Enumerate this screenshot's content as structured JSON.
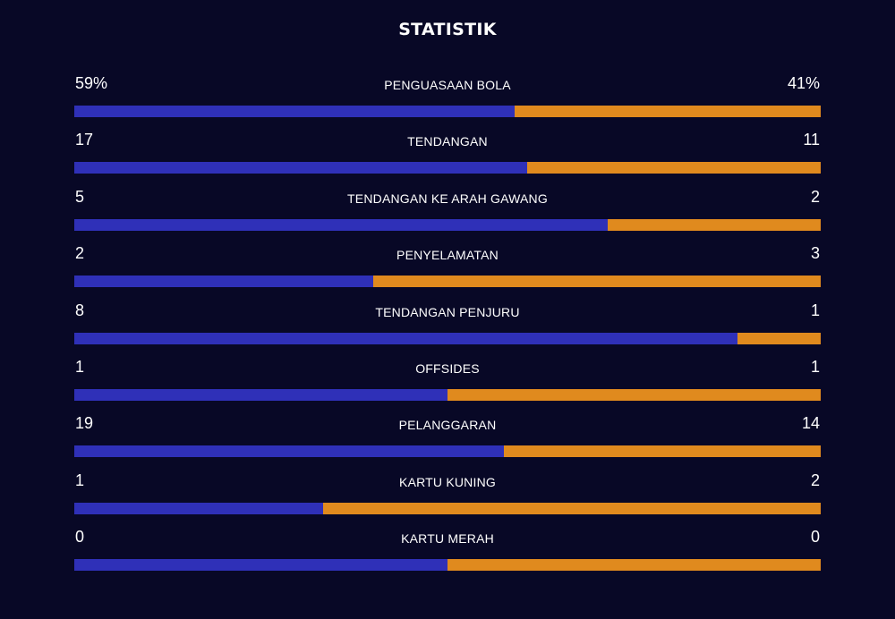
{
  "title": "STATISTIK",
  "colors": {
    "home": "#2f30b8",
    "away": "#e08a1e",
    "background": "#080826"
  },
  "chart_data": {
    "type": "bar",
    "orientation": "horizontal-stacked-comparison",
    "categories": [
      "PENGUASAAN BOLA",
      "TENDANGAN",
      "TENDANGAN KE ARAH GAWANG",
      "PENYELAMATAN",
      "TENDANGAN PENJURU",
      "OFFSIDES",
      "PELANGGARAN",
      "KARTU KUNING",
      "KARTU MERAH"
    ],
    "home_labels": [
      "59%",
      "17",
      "5",
      "2",
      "8",
      "1",
      "19",
      "1",
      "0"
    ],
    "away_labels": [
      "41%",
      "11",
      "2",
      "3",
      "1",
      "1",
      "14",
      "2",
      "0"
    ],
    "series": [
      {
        "values": [
          59,
          17,
          5,
          2,
          8,
          1,
          19,
          1,
          0
        ]
      },
      {
        "values": [
          41,
          11,
          2,
          3,
          1,
          1,
          14,
          2,
          0
        ]
      }
    ]
  }
}
